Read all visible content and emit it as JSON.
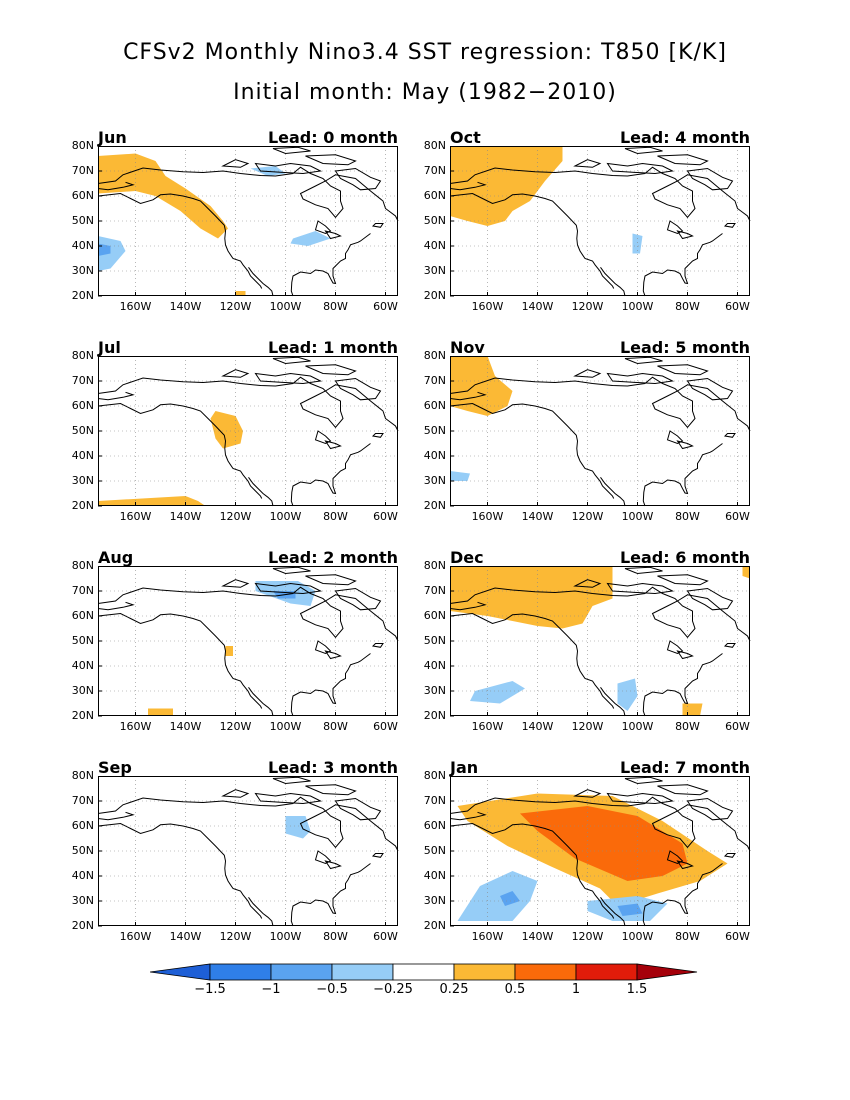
{
  "title": {
    "line1": "CFSv2 Monthly Nino3.4 SST regression: T850 [K/K]",
    "line2": "Initial month: May (1982−2010)"
  },
  "lat_labels": [
    "80N",
    "70N",
    "60N",
    "50N",
    "40N",
    "30N",
    "20N"
  ],
  "lon_labels": [
    "160W",
    "140W",
    "120W",
    "100W",
    "80W",
    "60W"
  ],
  "panels": [
    {
      "month": "Jun",
      "lead": "Lead: 0 month"
    },
    {
      "month": "Oct",
      "lead": "Lead: 4 month"
    },
    {
      "month": "Jul",
      "lead": "Lead: 1 month"
    },
    {
      "month": "Nov",
      "lead": "Lead: 5 month"
    },
    {
      "month": "Aug",
      "lead": "Lead: 2 month"
    },
    {
      "month": "Dec",
      "lead": "Lead: 6 month"
    },
    {
      "month": "Sep",
      "lead": "Lead: 3 month"
    },
    {
      "month": "Jan",
      "lead": "Lead: 7 month"
    }
  ],
  "colorbar": {
    "labels": [
      "−1.5",
      "−1",
      "−0.5",
      "−0.25",
      "0.25",
      "0.5",
      "1",
      "1.5"
    ],
    "colors": [
      "#1e5fd6",
      "#2f7fe8",
      "#5aa3f0",
      "#96cdf7",
      "#ffffff",
      "#fbb935",
      "#fa6a0a",
      "#e11c0a",
      "#a5000a"
    ]
  },
  "colors": {
    "pos_025": "#fbb935",
    "pos_05": "#fa6a0a",
    "neg_025": "#96cdf7",
    "neg_05": "#5aa3f0",
    "neg_1": "#2f7fe8"
  }
}
